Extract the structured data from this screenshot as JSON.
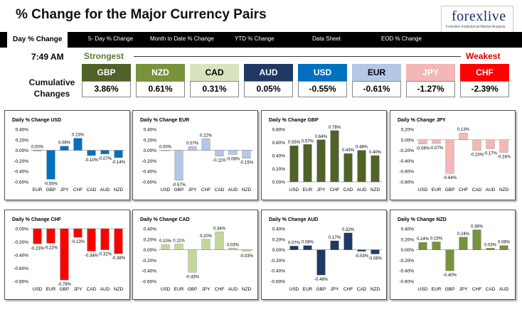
{
  "header": {
    "title": "% Change for the Major Currency Pairs",
    "logo": "forexlive",
    "logo_tagline": "Forexlive Institutional Market Analysis"
  },
  "nav": {
    "items": [
      "Day % Change",
      "5- Day % Change",
      "Month to Date % Change",
      "YTD % Change",
      "Data Sheet",
      "EOD % Change"
    ],
    "active": "Day % Change"
  },
  "summary": {
    "time": "7:49 AM",
    "strongest_label": "Strongest",
    "weakest_label": "Weakest",
    "cumulative_label": "Cumulative Changes",
    "currencies": [
      {
        "name": "GBP",
        "value": "3.86%",
        "bg": "#4f6228",
        "fg": "#ffffff"
      },
      {
        "name": "NZD",
        "value": "0.61%",
        "bg": "#77933c",
        "fg": "#ffffff"
      },
      {
        "name": "CAD",
        "value": "0.31%",
        "bg": "#d7e4bd",
        "fg": "#000000"
      },
      {
        "name": "AUD",
        "value": "0.05%",
        "bg": "#1f3864",
        "fg": "#ffffff"
      },
      {
        "name": "USD",
        "value": "-0.55%",
        "bg": "#0070c0",
        "fg": "#ffffff"
      },
      {
        "name": "EUR",
        "value": "-0.61%",
        "bg": "#b4c7e7",
        "fg": "#000000"
      },
      {
        "name": "JPY",
        "value": "-1.27%",
        "bg": "#f4b6b7",
        "fg": "#ffffff"
      },
      {
        "name": "CHF",
        "value": "-2.39%",
        "bg": "#ff0000",
        "fg": "#ffffff"
      }
    ]
  },
  "chart_data": [
    {
      "type": "bar",
      "title": "Daily % Change USD",
      "categories": [
        "EUR",
        "GBP",
        "JPY",
        "CHF",
        "CAD",
        "AUD",
        "NZD"
      ],
      "values": [
        0.0,
        -0.55,
        0.08,
        0.23,
        -0.1,
        -0.07,
        -0.14
      ],
      "labels": [
        "0.00%",
        "-0.55%",
        "0.08%",
        "0.23%",
        "-0.10%",
        "-0.07%",
        "-0.14%"
      ],
      "ylim": [
        -0.6,
        0.4
      ],
      "yticks": [
        "-0.60%",
        "-0.40%",
        "-0.20%",
        "0.00%",
        "0.20%",
        "0.40%"
      ],
      "ytick_values": [
        -0.6,
        -0.4,
        -0.2,
        0,
        0.2,
        0.4
      ],
      "color": "#0070c0"
    },
    {
      "type": "bar",
      "title": "Daily % Change EUR",
      "categories": [
        "USD",
        "GBP",
        "JPY",
        "CHF",
        "CAD",
        "AUD",
        "NZD"
      ],
      "values": [
        0.0,
        -0.57,
        0.07,
        0.22,
        -0.11,
        -0.08,
        -0.15
      ],
      "labels": [
        "0.00%",
        "-0.57%",
        "0.07%",
        "0.22%",
        "-0.11%",
        "-0.08%",
        "-0.15%"
      ],
      "ylim": [
        -0.6,
        0.4
      ],
      "yticks": [
        "-0.60%",
        "-0.40%",
        "-0.20%",
        "0.00%",
        "0.20%",
        "0.40%"
      ],
      "ytick_values": [
        -0.6,
        -0.4,
        -0.2,
        0,
        0.2,
        0.4
      ],
      "color": "#b4c7e7"
    },
    {
      "type": "bar",
      "title": "Daily % Change GBP",
      "categories": [
        "USD",
        "EUR",
        "JPY",
        "CHF",
        "CAD",
        "AUD",
        "NZD"
      ],
      "values": [
        0.55,
        0.57,
        0.64,
        0.78,
        0.43,
        0.48,
        0.4
      ],
      "labels": [
        "0.55%",
        "0.57%",
        "0.64%",
        "0.78%",
        "0.43%",
        "0.48%",
        "0.40%"
      ],
      "ylim": [
        0,
        0.8
      ],
      "yticks": [
        "0.00%",
        "0.20%",
        "0.40%",
        "0.60%",
        "0.80%"
      ],
      "ytick_values": [
        0,
        0.2,
        0.4,
        0.6,
        0.8
      ],
      "color": "#4f6228"
    },
    {
      "type": "bar",
      "title": "Daily % Change JPY",
      "categories": [
        "USD",
        "EUR",
        "GBP",
        "CHF",
        "CAD",
        "AUD",
        "NZD"
      ],
      "values": [
        -0.08,
        -0.07,
        -0.64,
        0.13,
        -0.2,
        -0.17,
        -0.24
      ],
      "labels": [
        "-0.08%",
        "-0.07%",
        "-0.64%",
        "0.13%",
        "-0.20%",
        "-0.17%",
        "-0.24%"
      ],
      "ylim": [
        -0.8,
        0.2
      ],
      "yticks": [
        "-0.80%",
        "-0.60%",
        "-0.40%",
        "-0.20%",
        "0.00%",
        "0.20%"
      ],
      "ytick_values": [
        -0.8,
        -0.6,
        -0.4,
        -0.2,
        0,
        0.2
      ],
      "color": "#f4b6b7"
    },
    {
      "type": "bar",
      "title": "Daily % Change CHF",
      "categories": [
        "USD",
        "EUR",
        "GBP",
        "JPY",
        "CAD",
        "AUD",
        "NZD"
      ],
      "values": [
        -0.23,
        -0.22,
        -0.78,
        -0.13,
        -0.34,
        -0.32,
        -0.38
      ],
      "labels": [
        "-0.23%",
        "-0.22%",
        "-0.78%",
        "-0.13%",
        "-0.34%",
        "-0.32%",
        "-0.38%"
      ],
      "ylim": [
        -0.8,
        0
      ],
      "yticks": [
        "-0.80%",
        "-0.60%",
        "-0.40%",
        "-0.20%",
        "0.00%"
      ],
      "ytick_values": [
        -0.8,
        -0.6,
        -0.4,
        -0.2,
        0
      ],
      "color": "#ff0000"
    },
    {
      "type": "bar",
      "title": "Daily % Change CAD",
      "categories": [
        "USD",
        "EUR",
        "GBP",
        "JPY",
        "CHF",
        "AUD",
        "NZD"
      ],
      "values": [
        0.1,
        0.11,
        -0.43,
        0.2,
        0.34,
        0.03,
        -0.03
      ],
      "labels": [
        "0.10%",
        "0.11%",
        "-0.43%",
        "0.20%",
        "0.34%",
        "0.03%",
        "-0.03%"
      ],
      "ylim": [
        -0.6,
        0.4
      ],
      "yticks": [
        "-0.60%",
        "-0.40%",
        "-0.20%",
        "0.00%",
        "0.20%",
        "0.40%"
      ],
      "ytick_values": [
        -0.6,
        -0.4,
        -0.2,
        0,
        0.2,
        0.4
      ],
      "color": "#c4d79b"
    },
    {
      "type": "bar",
      "title": "Daily % Change AUD",
      "categories": [
        "USD",
        "EUR",
        "GBP",
        "JPY",
        "CHF",
        "CAD",
        "NZD"
      ],
      "values": [
        0.07,
        0.08,
        -0.48,
        0.17,
        0.32,
        -0.03,
        -0.08
      ],
      "labels": [
        "0.07%",
        "0.08%",
        "-0.48%",
        "0.17%",
        "0.32%",
        "-0.03%",
        "-0.08%"
      ],
      "ylim": [
        -0.6,
        0.4
      ],
      "yticks": [
        "-0.60%",
        "-0.40%",
        "-0.20%",
        "0.00%",
        "0.20%",
        "0.40%"
      ],
      "ytick_values": [
        -0.6,
        -0.4,
        -0.2,
        0,
        0.2,
        0.4
      ],
      "color": "#1f3864"
    },
    {
      "type": "bar",
      "title": "Daily % Change NZD",
      "categories": [
        "USD",
        "EUR",
        "GBP",
        "JPY",
        "CHF",
        "CAD",
        "AUD"
      ],
      "values": [
        0.14,
        0.15,
        -0.4,
        0.24,
        0.38,
        0.03,
        0.08
      ],
      "labels": [
        "0.14%",
        "0.15%",
        "-0.40%",
        "0.24%",
        "0.38%",
        "0.03%",
        "0.08%"
      ],
      "ylim": [
        -0.6,
        0.4
      ],
      "yticks": [
        "-0.60%",
        "-0.40%",
        "-0.20%",
        "0.00%",
        "0.20%",
        "0.40%"
      ],
      "ytick_values": [
        -0.6,
        -0.4,
        -0.2,
        0,
        0.2,
        0.4
      ],
      "color": "#77933c"
    }
  ]
}
